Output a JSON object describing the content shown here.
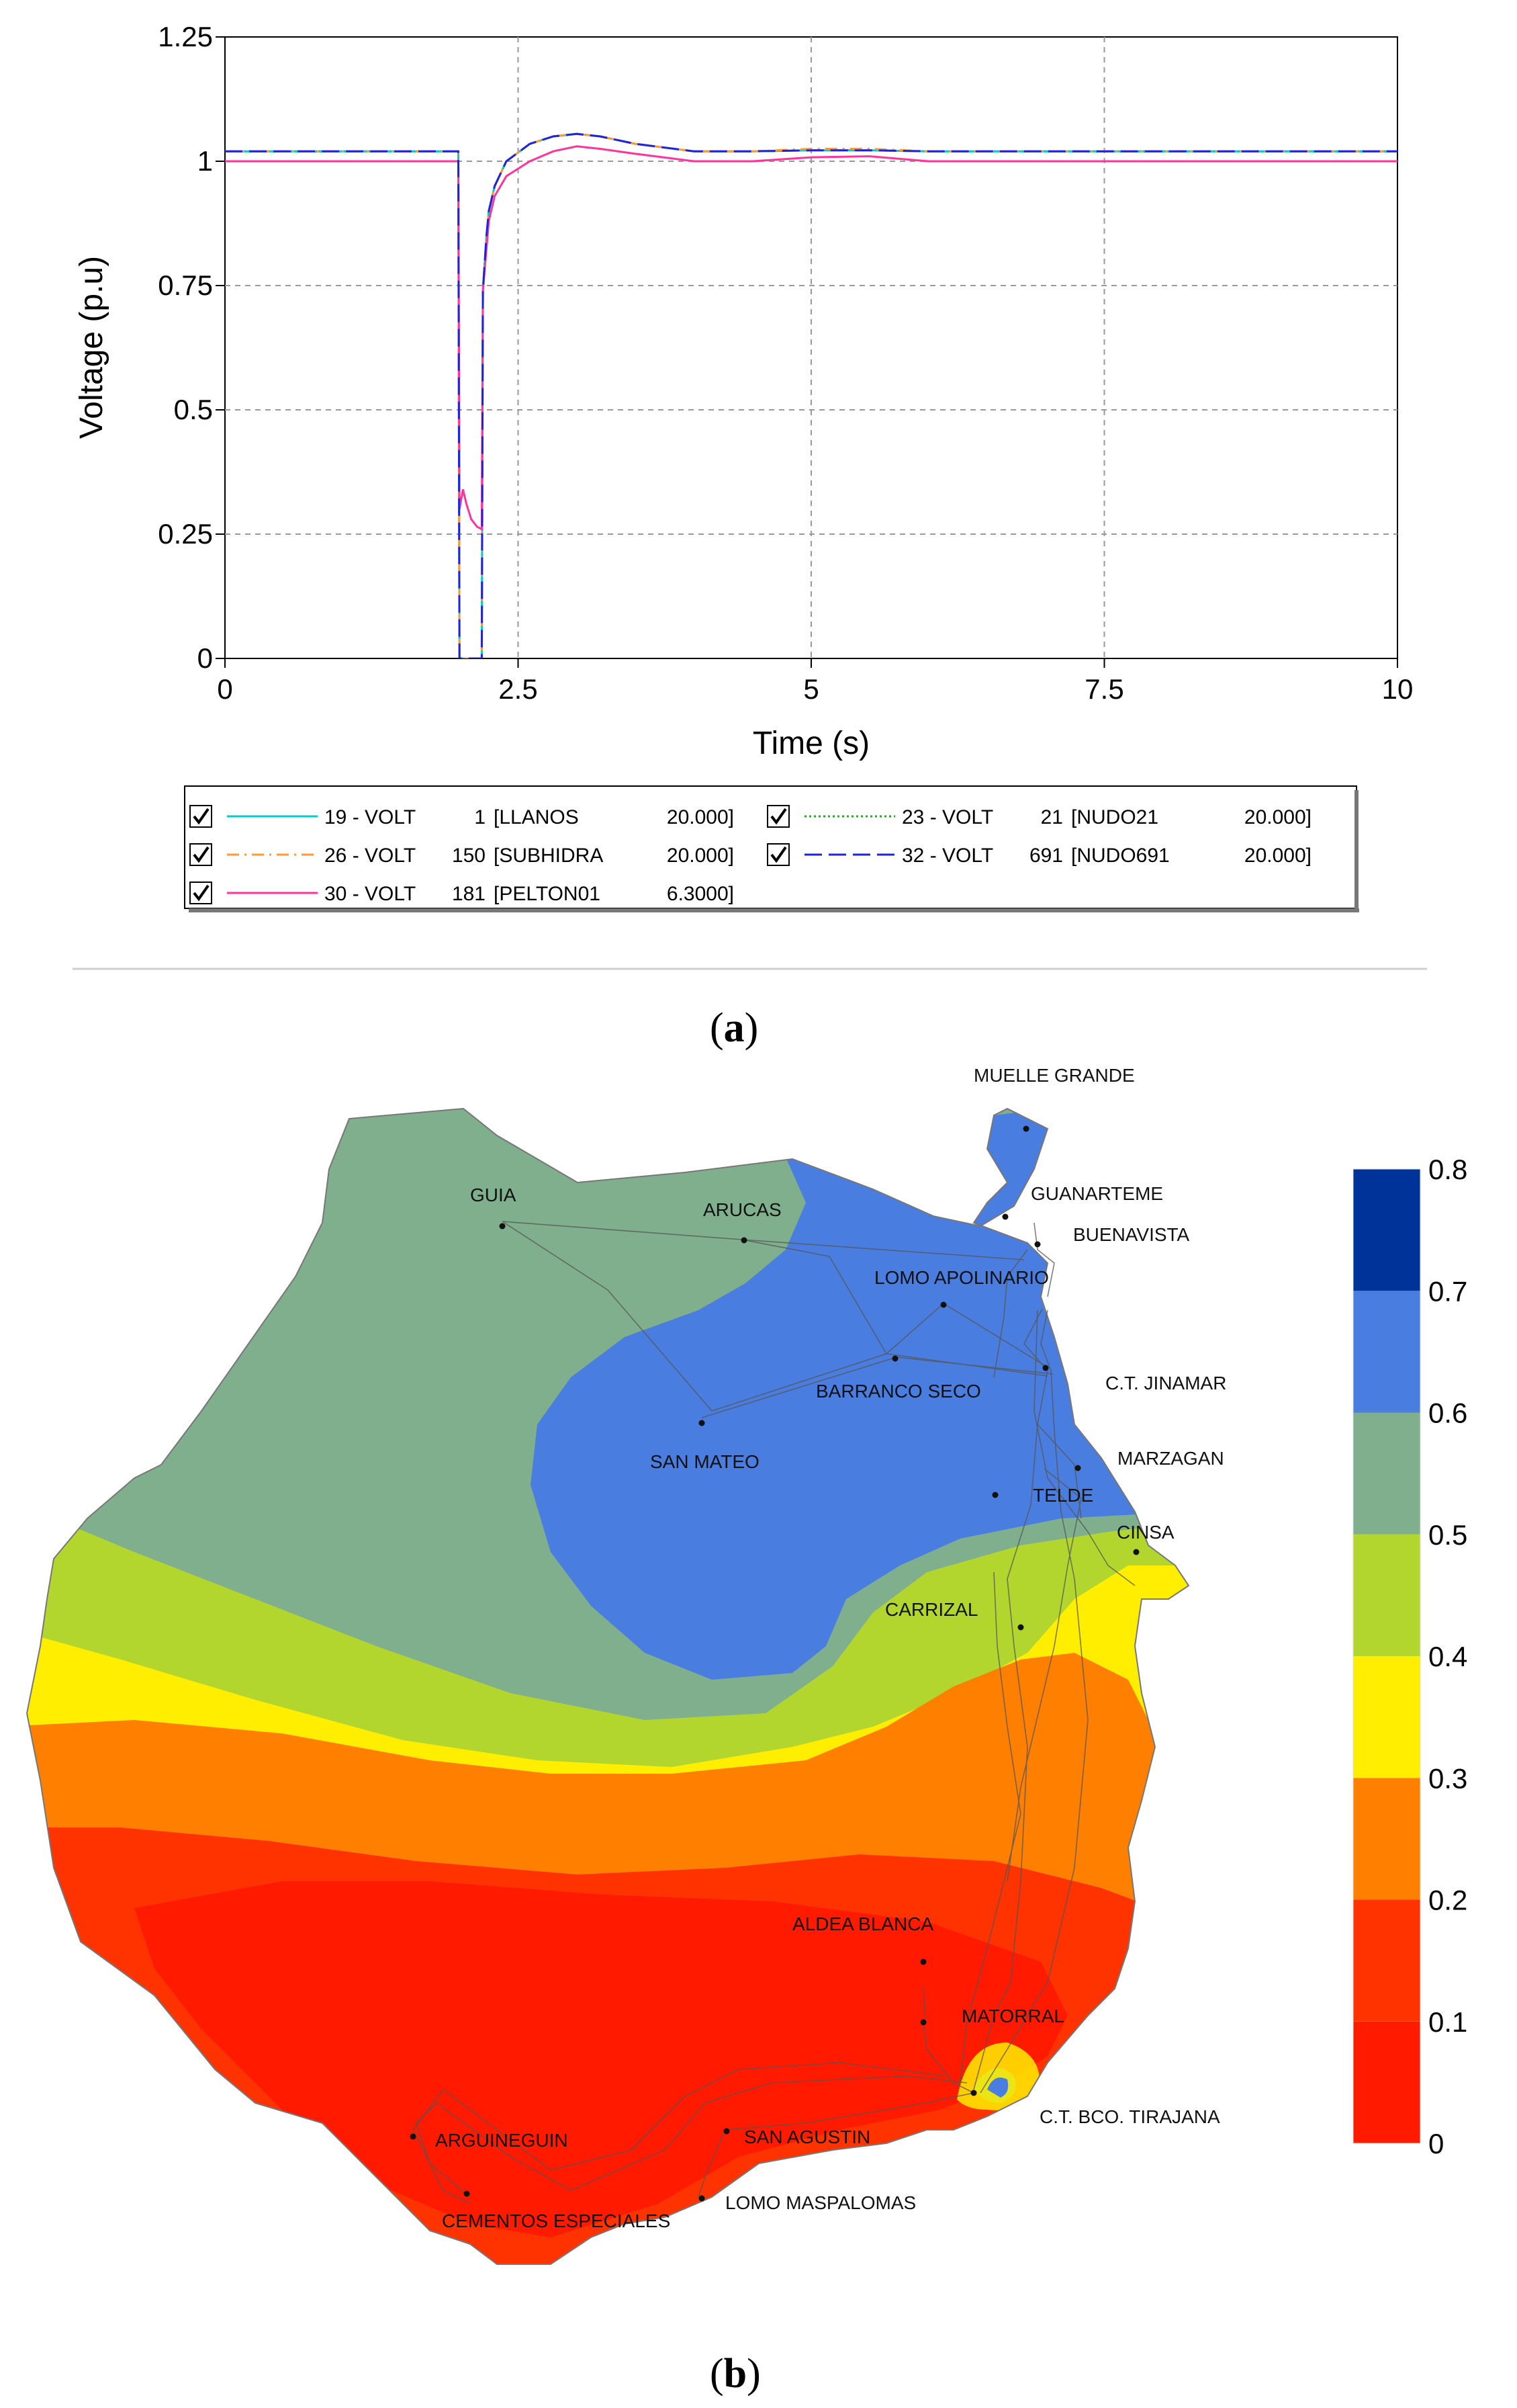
{
  "panel_labels": {
    "a_open": "(",
    "a_letter": "a",
    "a_close": ")",
    "b_open": "(",
    "b_letter": "b",
    "b_close": ")"
  },
  "chart_data": [
    {
      "type": "line",
      "xlabel": "Time (s)",
      "ylabel": "Voltage (p.u)",
      "xlim": [
        0,
        10
      ],
      "ylim": [
        0,
        1.25
      ],
      "xticks": [
        0,
        2.5,
        5,
        7.5,
        10
      ],
      "xtick_labels": [
        "0",
        "2.5",
        "5",
        "7.5",
        "10"
      ],
      "yticks": [
        0,
        0.25,
        0.5,
        0.75,
        1,
        1.25
      ],
      "ytick_labels": [
        "0",
        "0.25",
        "0.5",
        "0.75",
        "1",
        "1.25"
      ],
      "grid": true,
      "legend_position": "below",
      "series": [
        {
          "name": "19 - VOLT",
          "bus_no": "1",
          "bus_name": "[LLANOS",
          "kv": "20.000]",
          "color": "#00cccc",
          "dash": "solid",
          "x": [
            0,
            1.99,
            2.0,
            2.19,
            2.2,
            2.23,
            2.25,
            2.3,
            2.4,
            2.6,
            2.8,
            3.0,
            3.2,
            3.5,
            4.0,
            4.5,
            5.0,
            5.5,
            6,
            10
          ],
          "y": [
            1.02,
            1.02,
            0.0,
            0.0,
            0.74,
            0.85,
            0.9,
            0.95,
            1.0,
            1.035,
            1.05,
            1.055,
            1.05,
            1.035,
            1.02,
            1.02,
            1.022,
            1.022,
            1.02,
            1.02
          ]
        },
        {
          "name": "26 - VOLT",
          "bus_no": "150",
          "bus_name": "[SUBHIDRA",
          "kv": "20.000]",
          "color": "#ff9933",
          "dash": "dashdot",
          "x": [
            0,
            1.99,
            2.0,
            2.19,
            2.2,
            2.23,
            2.25,
            2.3,
            2.4,
            2.6,
            2.8,
            3.0,
            3.2,
            3.5,
            4.0,
            4.5,
            5.0,
            5.5,
            6,
            10
          ],
          "y": [
            1.02,
            1.02,
            0.0,
            0.0,
            0.74,
            0.85,
            0.9,
            0.95,
            1.0,
            1.035,
            1.05,
            1.055,
            1.05,
            1.035,
            1.02,
            1.02,
            1.025,
            1.025,
            1.02,
            1.02
          ]
        },
        {
          "name": "30 - VOLT",
          "bus_no": "181",
          "bus_name": "[PELTON01",
          "kv": "6.3000]",
          "color": "#ff3399",
          "dash": "solid",
          "x": [
            0,
            1.99,
            2.0,
            2.03,
            2.06,
            2.1,
            2.15,
            2.19,
            2.2,
            2.25,
            2.3,
            2.4,
            2.6,
            2.8,
            3.0,
            3.2,
            3.5,
            4.0,
            4.5,
            5.0,
            5.5,
            6,
            10
          ],
          "y": [
            1.0,
            1.0,
            0.3,
            0.34,
            0.31,
            0.28,
            0.265,
            0.26,
            0.74,
            0.88,
            0.93,
            0.97,
            1.0,
            1.02,
            1.03,
            1.025,
            1.015,
            1.0,
            1.0,
            1.008,
            1.01,
            1.0,
            1.0
          ]
        },
        {
          "name": "23 - VOLT",
          "bus_no": "21",
          "bus_name": "[NUDO21",
          "kv": "20.000]",
          "color": "#22aa22",
          "dash": "dotted",
          "x": [
            0,
            1.99,
            2.0,
            2.19,
            2.2,
            2.23,
            2.25,
            2.3,
            2.4,
            2.6,
            2.8,
            3.0,
            3.2,
            3.5,
            4.0,
            4.5,
            5.0,
            5.5,
            6,
            10
          ],
          "y": [
            1.02,
            1.02,
            0.0,
            0.0,
            0.74,
            0.85,
            0.9,
            0.95,
            1.0,
            1.035,
            1.05,
            1.055,
            1.05,
            1.035,
            1.02,
            1.02,
            1.022,
            1.022,
            1.02,
            1.02
          ]
        },
        {
          "name": "32 - VOLT",
          "bus_no": "691",
          "bus_name": "[NUDO691",
          "kv": "20.000]",
          "color": "#2222dd",
          "dash": "longdash",
          "x": [
            0,
            1.99,
            2.0,
            2.19,
            2.2,
            2.23,
            2.25,
            2.3,
            2.4,
            2.6,
            2.8,
            3.0,
            3.2,
            3.5,
            4.0,
            4.5,
            5.0,
            5.5,
            6,
            10
          ],
          "y": [
            1.02,
            1.02,
            0.0,
            0.0,
            0.74,
            0.85,
            0.9,
            0.95,
            1.0,
            1.035,
            1.05,
            1.055,
            1.05,
            1.035,
            1.02,
            1.02,
            1.022,
            1.022,
            1.02,
            1.02
          ]
        }
      ]
    },
    {
      "type": "heatmap",
      "subtype": "contour map",
      "colorbar": {
        "ticks": [
          "0",
          "0.1",
          "0.2",
          "0.3",
          "0.4",
          "0.5",
          "0.6",
          "0.7",
          "0.8"
        ],
        "bands": [
          {
            "from": 0.0,
            "to": 0.1,
            "color": "#ff1a00"
          },
          {
            "from": 0.1,
            "to": 0.2,
            "color": "#ff3300"
          },
          {
            "from": 0.2,
            "to": 0.3,
            "color": "#ff7f00"
          },
          {
            "from": 0.3,
            "to": 0.4,
            "color": "#ffee00"
          },
          {
            "from": 0.4,
            "to": 0.5,
            "color": "#b3d62e"
          },
          {
            "from": 0.5,
            "to": 0.6,
            "color": "#7faf8c"
          },
          {
            "from": 0.6,
            "to": 0.7,
            "color": "#4a7de0"
          },
          {
            "from": 0.7,
            "to": 0.8,
            "color": "#003399"
          }
        ]
      },
      "stations": [
        {
          "name": "MUELLE GRANDE"
        },
        {
          "name": "GUANARTEME"
        },
        {
          "name": "BUENAVISTA"
        },
        {
          "name": "GUIA"
        },
        {
          "name": "ARUCAS"
        },
        {
          "name": "LOMO APOLINARIO"
        },
        {
          "name": "C.T. JINAMAR"
        },
        {
          "name": "BARRANCO SECO"
        },
        {
          "name": "MARZAGAN"
        },
        {
          "name": "SAN MATEO"
        },
        {
          "name": "TELDE"
        },
        {
          "name": "CINSA"
        },
        {
          "name": "CARRIZAL"
        },
        {
          "name": "ALDEA BLANCA"
        },
        {
          "name": "MATORRAL"
        },
        {
          "name": "C.T. BCO. TIRAJANA"
        },
        {
          "name": "ARGUINEGUIN"
        },
        {
          "name": "SAN AGUSTIN"
        },
        {
          "name": "LOMO MASPALOMAS"
        },
        {
          "name": "CEMENTOS ESPECIALES"
        }
      ]
    }
  ]
}
